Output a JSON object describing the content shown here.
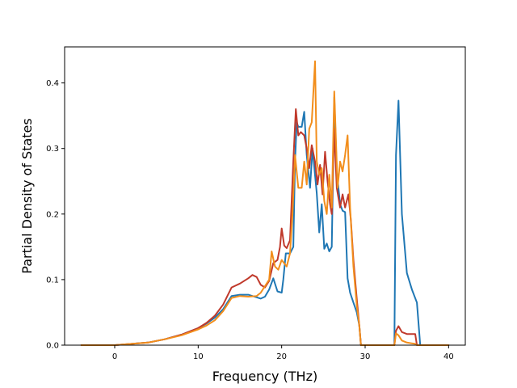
{
  "chart_data": {
    "type": "line",
    "title": "",
    "xlabel": "Frequency (THz)",
    "ylabel": "Partial Density of States",
    "xlim": [
      -6,
      42
    ],
    "ylim": [
      0,
      0.455
    ],
    "xticks": [
      0,
      10,
      20,
      30,
      40
    ],
    "xtick_labels": [
      "0",
      "10",
      "20",
      "30",
      "40"
    ],
    "yticks": [
      0.0,
      0.1,
      0.2,
      0.3,
      0.4
    ],
    "ytick_labels": [
      "0.0",
      "0.1",
      "0.2",
      "0.3",
      "0.4"
    ],
    "grid": false,
    "legend": "none",
    "series": [
      {
        "color": "#1f77b4",
        "points": [
          [
            -4,
            0
          ],
          [
            0,
            0
          ],
          [
            2,
            0.002
          ],
          [
            4,
            0.004
          ],
          [
            6,
            0.009
          ],
          [
            8,
            0.016
          ],
          [
            10,
            0.026
          ],
          [
            11,
            0.033
          ],
          [
            12,
            0.042
          ],
          [
            13,
            0.055
          ],
          [
            14,
            0.075
          ],
          [
            15,
            0.077
          ],
          [
            16,
            0.077
          ],
          [
            17,
            0.073
          ],
          [
            17.5,
            0.071
          ],
          [
            18,
            0.074
          ],
          [
            18.5,
            0.085
          ],
          [
            19,
            0.102
          ],
          [
            19.5,
            0.082
          ],
          [
            20,
            0.08
          ],
          [
            20.2,
            0.1
          ],
          [
            20.5,
            0.14
          ],
          [
            21,
            0.14
          ],
          [
            21.4,
            0.15
          ],
          [
            21.6,
            0.28
          ],
          [
            21.8,
            0.34
          ],
          [
            22,
            0.333
          ],
          [
            22.4,
            0.333
          ],
          [
            22.7,
            0.356
          ],
          [
            23,
            0.29
          ],
          [
            23.4,
            0.24
          ],
          [
            23.7,
            0.3
          ],
          [
            24.2,
            0.232
          ],
          [
            24.5,
            0.172
          ],
          [
            24.8,
            0.215
          ],
          [
            25.1,
            0.147
          ],
          [
            25.4,
            0.155
          ],
          [
            25.7,
            0.143
          ],
          [
            26,
            0.15
          ],
          [
            26.3,
            0.378
          ],
          [
            26.6,
            0.265
          ],
          [
            27,
            0.215
          ],
          [
            27.3,
            0.205
          ],
          [
            27.6,
            0.203
          ],
          [
            27.9,
            0.102
          ],
          [
            28.2,
            0.08
          ],
          [
            28.6,
            0.065
          ],
          [
            29,
            0.05
          ],
          [
            29.3,
            0.03
          ],
          [
            29.5,
            0
          ],
          [
            33.5,
            0
          ],
          [
            33.7,
            0.29
          ],
          [
            34,
            0.373
          ],
          [
            34.4,
            0.2
          ],
          [
            35,
            0.11
          ],
          [
            35.6,
            0.085
          ],
          [
            36.2,
            0.065
          ],
          [
            36.6,
            0
          ],
          [
            40,
            0
          ]
        ]
      },
      {
        "color": "#c0392b",
        "points": [
          [
            -4,
            0
          ],
          [
            0,
            0
          ],
          [
            2,
            0.002
          ],
          [
            4,
            0.004
          ],
          [
            6,
            0.009
          ],
          [
            8,
            0.016
          ],
          [
            10,
            0.026
          ],
          [
            11,
            0.034
          ],
          [
            12,
            0.045
          ],
          [
            13,
            0.062
          ],
          [
            14,
            0.088
          ],
          [
            15,
            0.094
          ],
          [
            16,
            0.102
          ],
          [
            16.5,
            0.107
          ],
          [
            17,
            0.104
          ],
          [
            17.5,
            0.092
          ],
          [
            18,
            0.088
          ],
          [
            18.5,
            0.098
          ],
          [
            19,
            0.125
          ],
          [
            19.5,
            0.13
          ],
          [
            19.8,
            0.15
          ],
          [
            20,
            0.178
          ],
          [
            20.3,
            0.152
          ],
          [
            20.6,
            0.148
          ],
          [
            21,
            0.16
          ],
          [
            21.4,
            0.28
          ],
          [
            21.7,
            0.36
          ],
          [
            22,
            0.32
          ],
          [
            22.3,
            0.325
          ],
          [
            22.7,
            0.32
          ],
          [
            23,
            0.3
          ],
          [
            23.3,
            0.27
          ],
          [
            23.6,
            0.305
          ],
          [
            24,
            0.28
          ],
          [
            24.3,
            0.245
          ],
          [
            24.6,
            0.275
          ],
          [
            24.9,
            0.23
          ],
          [
            25.2,
            0.295
          ],
          [
            25.5,
            0.25
          ],
          [
            25.8,
            0.215
          ],
          [
            26,
            0.2
          ],
          [
            26.3,
            0.33
          ],
          [
            26.6,
            0.24
          ],
          [
            27,
            0.21
          ],
          [
            27.3,
            0.23
          ],
          [
            27.6,
            0.21
          ],
          [
            28,
            0.23
          ],
          [
            28.3,
            0.19
          ],
          [
            28.6,
            0.13
          ],
          [
            29,
            0.07
          ],
          [
            29.3,
            0.03
          ],
          [
            29.5,
            0
          ],
          [
            33.5,
            0
          ],
          [
            33.7,
            0.022
          ],
          [
            34,
            0.029
          ],
          [
            34.4,
            0.02
          ],
          [
            35,
            0.017
          ],
          [
            36,
            0.017
          ],
          [
            36.2,
            0
          ],
          [
            40,
            0
          ]
        ]
      },
      {
        "color": "#f28e1c",
        "points": [
          [
            -4,
            0
          ],
          [
            0,
            0
          ],
          [
            2,
            0.002
          ],
          [
            4,
            0.004
          ],
          [
            6,
            0.009
          ],
          [
            8,
            0.015
          ],
          [
            10,
            0.024
          ],
          [
            11,
            0.03
          ],
          [
            12,
            0.038
          ],
          [
            13,
            0.052
          ],
          [
            14,
            0.072
          ],
          [
            15,
            0.075
          ],
          [
            16,
            0.074
          ],
          [
            17,
            0.075
          ],
          [
            17.5,
            0.08
          ],
          [
            18,
            0.09
          ],
          [
            18.5,
            0.1
          ],
          [
            18.8,
            0.143
          ],
          [
            19.2,
            0.12
          ],
          [
            19.6,
            0.115
          ],
          [
            20,
            0.13
          ],
          [
            20.3,
            0.125
          ],
          [
            20.6,
            0.12
          ],
          [
            21,
            0.14
          ],
          [
            21.3,
            0.2
          ],
          [
            21.6,
            0.29
          ],
          [
            22,
            0.24
          ],
          [
            22.4,
            0.24
          ],
          [
            22.7,
            0.28
          ],
          [
            23,
            0.245
          ],
          [
            23.3,
            0.33
          ],
          [
            23.6,
            0.34
          ],
          [
            24,
            0.433
          ],
          [
            24.2,
            0.28
          ],
          [
            24.5,
            0.26
          ],
          [
            24.8,
            0.27
          ],
          [
            25.1,
            0.22
          ],
          [
            25.4,
            0.2
          ],
          [
            25.7,
            0.26
          ],
          [
            26,
            0.21
          ],
          [
            26.3,
            0.387
          ],
          [
            26.7,
            0.24
          ],
          [
            27,
            0.28
          ],
          [
            27.3,
            0.265
          ],
          [
            27.6,
            0.29
          ],
          [
            27.9,
            0.32
          ],
          [
            28.2,
            0.21
          ],
          [
            28.6,
            0.12
          ],
          [
            29,
            0.06
          ],
          [
            29.3,
            0.03
          ],
          [
            29.5,
            0
          ],
          [
            33.5,
            0
          ],
          [
            33.7,
            0.018
          ],
          [
            34,
            0.015
          ],
          [
            34.4,
            0.007
          ],
          [
            35,
            0.004
          ],
          [
            36,
            0.002
          ],
          [
            36.2,
            0
          ],
          [
            40,
            0
          ]
        ]
      }
    ]
  }
}
